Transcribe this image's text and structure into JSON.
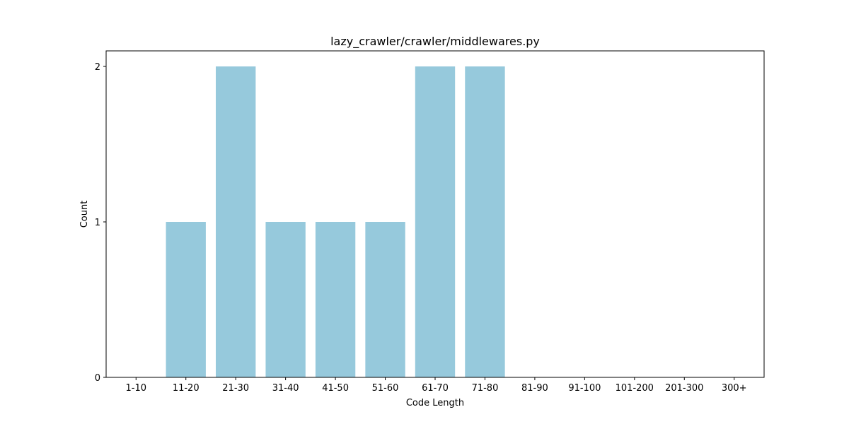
{
  "chart_data": {
    "type": "bar",
    "title": "lazy_crawler/crawler/middlewares.py",
    "xlabel": "Code Length",
    "ylabel": "Count",
    "categories": [
      "1-10",
      "11-20",
      "21-30",
      "31-40",
      "41-50",
      "51-60",
      "61-70",
      "71-80",
      "81-90",
      "91-100",
      "101-200",
      "201-300",
      "300+"
    ],
    "values": [
      0,
      1,
      2,
      1,
      1,
      1,
      2,
      2,
      0,
      0,
      0,
      0,
      0
    ],
    "yticks": [
      "0",
      "1",
      "2"
    ],
    "ylim": [
      0,
      2.1
    ],
    "bar_color": "#96c9dc",
    "grid": false,
    "legend": "none"
  }
}
